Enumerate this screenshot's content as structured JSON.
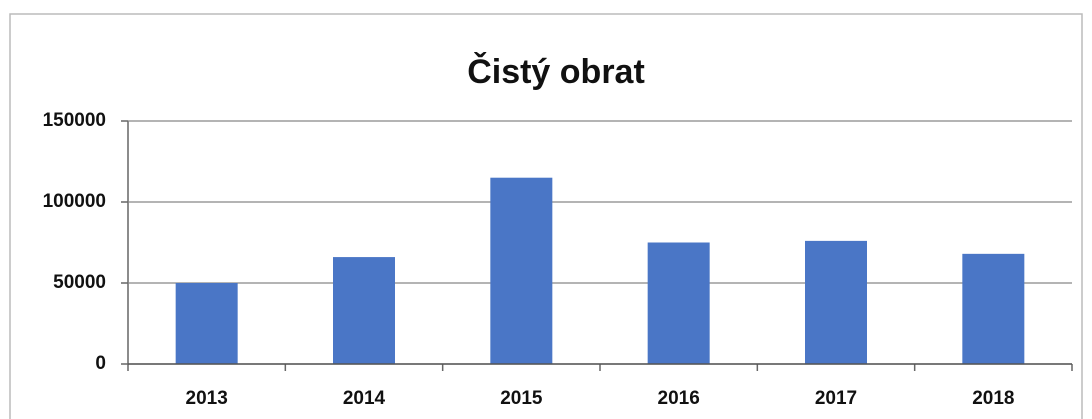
{
  "chart_data": {
    "type": "bar",
    "title": "Čistý obrat",
    "categories": [
      "2013",
      "2014",
      "2015",
      "2016",
      "2017",
      "2018"
    ],
    "values": [
      50000,
      66000,
      115000,
      75000,
      76000,
      68000
    ],
    "color": "#4a76c6",
    "ylim": [
      0,
      150000
    ],
    "yticks": [
      0,
      50000,
      100000,
      150000
    ],
    "grid": true
  }
}
